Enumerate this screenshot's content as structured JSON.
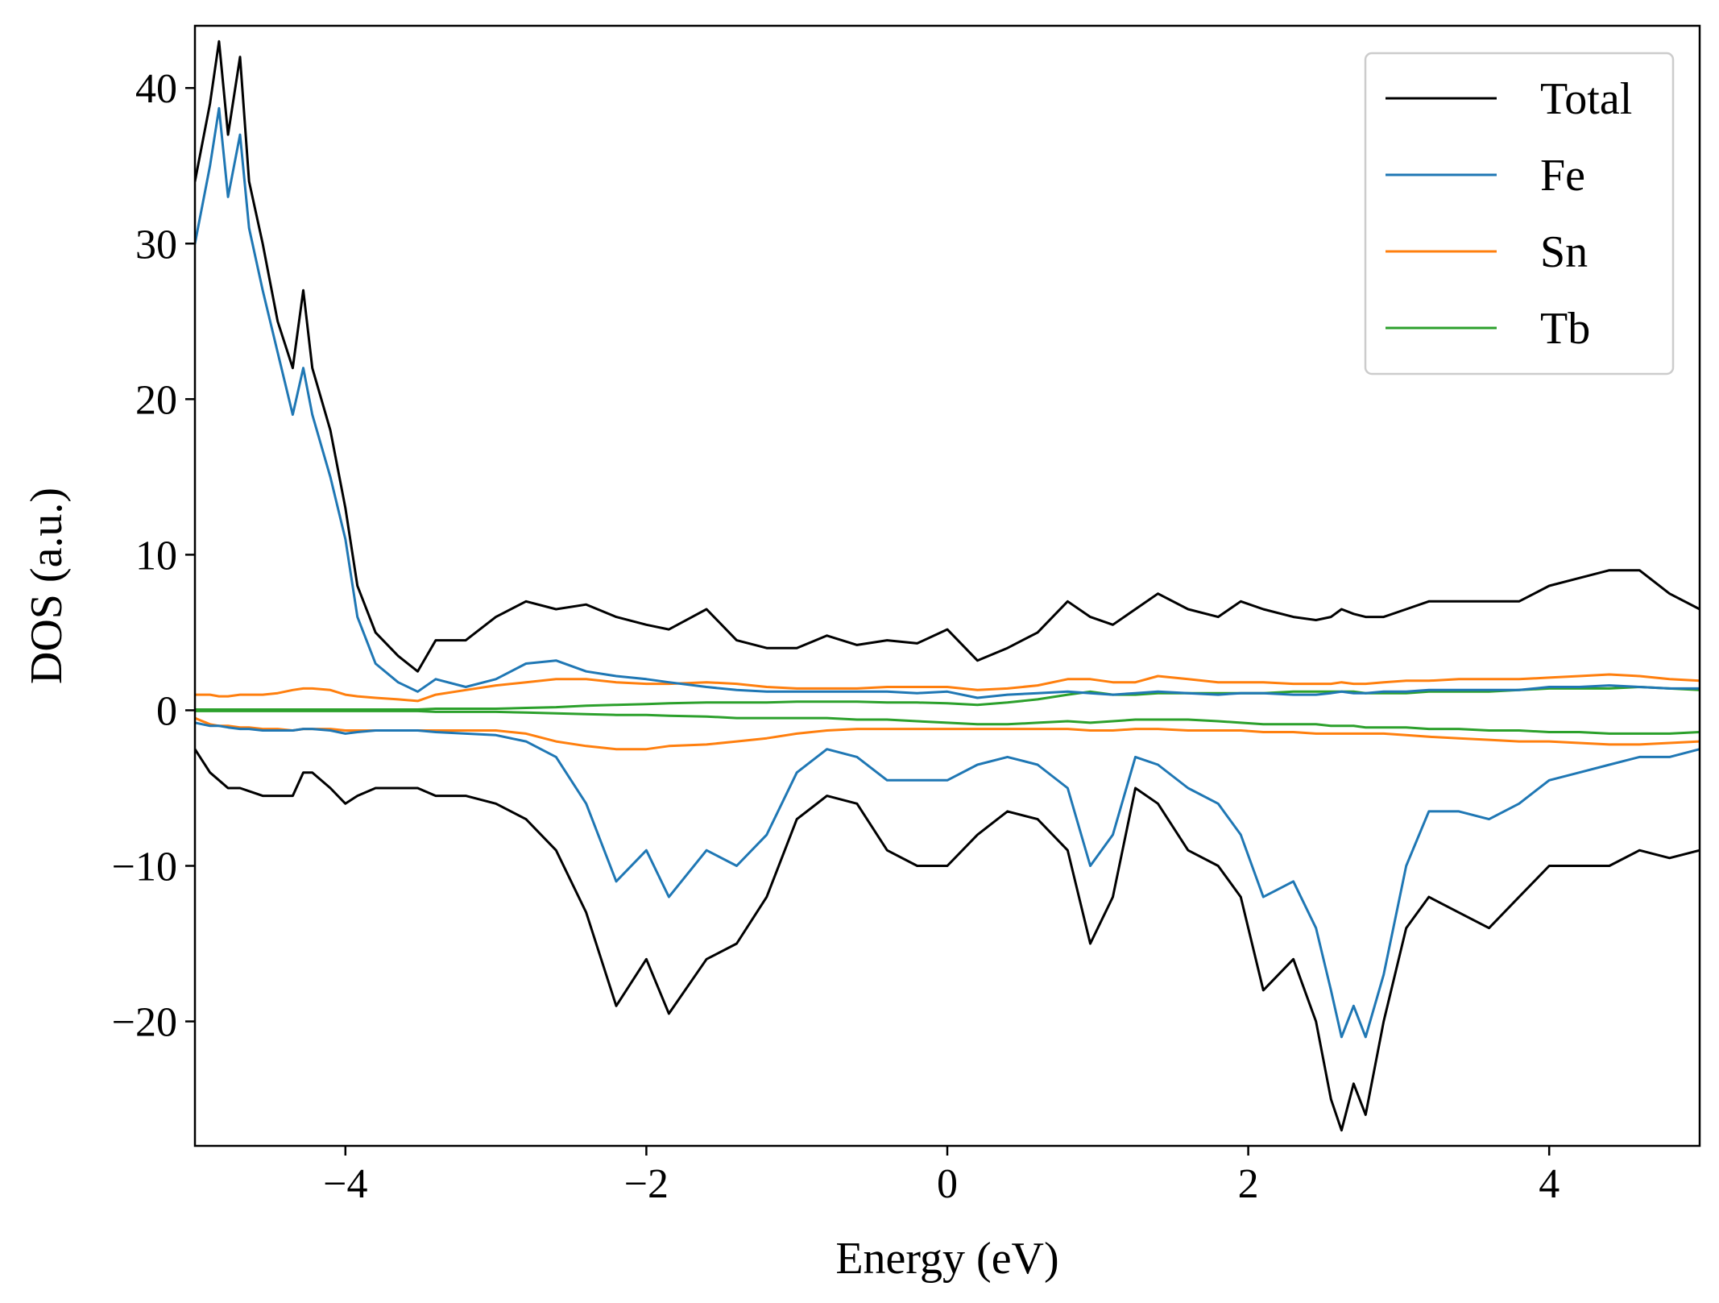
{
  "chart_data": {
    "type": "line",
    "title": "",
    "xlabel": "Energy (eV)",
    "ylabel": "DOS (a.u.)",
    "xlim": [
      -5,
      5
    ],
    "ylim": [
      -28,
      44
    ],
    "x_ticks": [
      -4,
      -2,
      0,
      2,
      4
    ],
    "x_tick_labels": [
      "−4",
      "−2",
      "0",
      "2",
      "4"
    ],
    "y_ticks": [
      -20,
      -10,
      0,
      10,
      20,
      30,
      40
    ],
    "y_tick_labels": [
      "−20",
      "−10",
      "0",
      "10",
      "20",
      "30",
      "40"
    ],
    "grid": false,
    "legend_position": "upper right",
    "x": [
      -5.0,
      -4.9,
      -4.84,
      -4.78,
      -4.7,
      -4.64,
      -4.55,
      -4.45,
      -4.35,
      -4.28,
      -4.22,
      -4.1,
      -4.0,
      -3.92,
      -3.8,
      -3.65,
      -3.52,
      -3.4,
      -3.2,
      -3.0,
      -2.8,
      -2.6,
      -2.4,
      -2.2,
      -2.0,
      -1.85,
      -1.6,
      -1.4,
      -1.2,
      -1.0,
      -0.8,
      -0.6,
      -0.4,
      -0.2,
      0.0,
      0.2,
      0.4,
      0.6,
      0.8,
      0.95,
      1.1,
      1.25,
      1.4,
      1.6,
      1.8,
      1.95,
      2.1,
      2.3,
      2.45,
      2.55,
      2.62,
      2.7,
      2.78,
      2.9,
      3.05,
      3.2,
      3.4,
      3.6,
      3.8,
      4.0,
      4.2,
      4.4,
      4.6,
      4.8,
      5.0
    ],
    "series": [
      {
        "name": "Total",
        "color": "#000000",
        "up": [
          34,
          39,
          43,
          37,
          42,
          34,
          30,
          25,
          22,
          27,
          22,
          18,
          13,
          8,
          5,
          3.5,
          2.5,
          4.5,
          4.5,
          6,
          7,
          6.5,
          6.8,
          6,
          5.5,
          5.2,
          6.5,
          4.5,
          4,
          4,
          4.8,
          4.2,
          4.5,
          4.3,
          5.2,
          3.2,
          4,
          5,
          7,
          6,
          5.5,
          6.5,
          7.5,
          6.5,
          6,
          7,
          6.5,
          6,
          5.8,
          6,
          6.5,
          6.2,
          6,
          6,
          6.5,
          7,
          7,
          7,
          7,
          8,
          8.5,
          9,
          9,
          7.5,
          6.5
        ],
        "down": [
          -2.5,
          -4,
          -4.5,
          -5,
          -5,
          -5.2,
          -5.5,
          -5.5,
          -5.5,
          -4,
          -4,
          -5,
          -6,
          -5.5,
          -5,
          -5,
          -5,
          -5.5,
          -5.5,
          -6,
          -7,
          -9,
          -13,
          -19,
          -16,
          -19.5,
          -16,
          -15,
          -12,
          -7,
          -5.5,
          -6,
          -9,
          -10,
          -10,
          -8,
          -6.5,
          -7,
          -9,
          -15,
          -12,
          -5,
          -6,
          -9,
          -10,
          -12,
          -18,
          -16,
          -20,
          -25,
          -27,
          -24,
          -26,
          -20,
          -14,
          -12,
          -13,
          -14,
          -12,
          -10,
          -10,
          -10,
          -9,
          -9.5,
          -9
        ]
      },
      {
        "name": "Fe",
        "color": "#1f77b4",
        "up": [
          30,
          35,
          38.7,
          33,
          37,
          31,
          27,
          23,
          19,
          22,
          19,
          15,
          11,
          6,
          3,
          1.8,
          1.2,
          2,
          1.5,
          2,
          3,
          3.2,
          2.5,
          2.2,
          2,
          1.8,
          1.5,
          1.3,
          1.2,
          1.2,
          1.2,
          1.2,
          1.2,
          1.1,
          1.2,
          0.8,
          1,
          1.1,
          1.2,
          1.1,
          1,
          1.1,
          1.2,
          1.1,
          1,
          1.1,
          1.1,
          1,
          1,
          1.1,
          1.2,
          1.1,
          1.1,
          1.2,
          1.2,
          1.3,
          1.3,
          1.3,
          1.3,
          1.5,
          1.5,
          1.6,
          1.5,
          1.4,
          1.4
        ],
        "down": [
          -0.8,
          -1,
          -1,
          -1.1,
          -1.2,
          -1.2,
          -1.3,
          -1.3,
          -1.3,
          -1.2,
          -1.2,
          -1.3,
          -1.5,
          -1.4,
          -1.3,
          -1.3,
          -1.3,
          -1.4,
          -1.5,
          -1.6,
          -2,
          -3,
          -6,
          -11,
          -9,
          -12,
          -9,
          -10,
          -8,
          -4,
          -2.5,
          -3,
          -4.5,
          -4.5,
          -4.5,
          -3.5,
          -3,
          -3.5,
          -5,
          -10,
          -8,
          -3,
          -3.5,
          -5,
          -6,
          -8,
          -12,
          -11,
          -14,
          -18,
          -21,
          -19,
          -21,
          -17,
          -10,
          -6.5,
          -6.5,
          -7,
          -6,
          -4.5,
          -4,
          -3.5,
          -3,
          -3,
          -2.5
        ]
      },
      {
        "name": "Sn",
        "color": "#ff7f0e",
        "up": [
          1,
          1,
          0.9,
          0.9,
          1,
          1,
          1,
          1.1,
          1.3,
          1.4,
          1.4,
          1.3,
          1,
          0.9,
          0.8,
          0.7,
          0.6,
          1,
          1.3,
          1.6,
          1.8,
          2,
          2,
          1.8,
          1.7,
          1.7,
          1.8,
          1.7,
          1.5,
          1.4,
          1.4,
          1.4,
          1.5,
          1.5,
          1.5,
          1.3,
          1.4,
          1.6,
          2,
          2,
          1.8,
          1.8,
          2.2,
          2,
          1.8,
          1.8,
          1.8,
          1.7,
          1.7,
          1.7,
          1.8,
          1.7,
          1.7,
          1.8,
          1.9,
          1.9,
          2,
          2,
          2,
          2.1,
          2.2,
          2.3,
          2.2,
          2,
          1.9
        ],
        "down": [
          -0.5,
          -0.9,
          -1,
          -1,
          -1.1,
          -1.1,
          -1.2,
          -1.2,
          -1.3,
          -1.2,
          -1.2,
          -1.2,
          -1.3,
          -1.3,
          -1.3,
          -1.3,
          -1.3,
          -1.3,
          -1.3,
          -1.3,
          -1.5,
          -2,
          -2.3,
          -2.5,
          -2.5,
          -2.3,
          -2.2,
          -2,
          -1.8,
          -1.5,
          -1.3,
          -1.2,
          -1.2,
          -1.2,
          -1.2,
          -1.2,
          -1.2,
          -1.2,
          -1.2,
          -1.3,
          -1.3,
          -1.2,
          -1.2,
          -1.3,
          -1.3,
          -1.3,
          -1.4,
          -1.4,
          -1.5,
          -1.5,
          -1.5,
          -1.5,
          -1.5,
          -1.5,
          -1.6,
          -1.7,
          -1.8,
          -1.9,
          -2,
          -2,
          -2.1,
          -2.2,
          -2.2,
          -2.1,
          -2
        ]
      },
      {
        "name": "Tb",
        "color": "#2ca02c",
        "up": [
          0.05,
          0.05,
          0.05,
          0.05,
          0.05,
          0.05,
          0.05,
          0.05,
          0.05,
          0.05,
          0.05,
          0.05,
          0.05,
          0.05,
          0.05,
          0.05,
          0.05,
          0.1,
          0.1,
          0.1,
          0.15,
          0.2,
          0.3,
          0.35,
          0.4,
          0.45,
          0.5,
          0.5,
          0.5,
          0.55,
          0.55,
          0.55,
          0.5,
          0.5,
          0.45,
          0.35,
          0.5,
          0.7,
          1,
          1.2,
          1,
          1,
          1.1,
          1.1,
          1.1,
          1.1,
          1.1,
          1.2,
          1.2,
          1.2,
          1.2,
          1.2,
          1.1,
          1.1,
          1.1,
          1.2,
          1.2,
          1.2,
          1.3,
          1.4,
          1.4,
          1.4,
          1.5,
          1.4,
          1.3
        ],
        "down": [
          -0.05,
          -0.05,
          -0.05,
          -0.05,
          -0.05,
          -0.05,
          -0.05,
          -0.05,
          -0.05,
          -0.05,
          -0.05,
          -0.05,
          -0.05,
          -0.05,
          -0.05,
          -0.05,
          -0.05,
          -0.1,
          -0.1,
          -0.1,
          -0.15,
          -0.2,
          -0.25,
          -0.3,
          -0.3,
          -0.35,
          -0.4,
          -0.5,
          -0.5,
          -0.5,
          -0.5,
          -0.6,
          -0.6,
          -0.7,
          -0.8,
          -0.9,
          -0.9,
          -0.8,
          -0.7,
          -0.8,
          -0.7,
          -0.6,
          -0.6,
          -0.6,
          -0.7,
          -0.8,
          -0.9,
          -0.9,
          -0.9,
          -1,
          -1,
          -1,
          -1.1,
          -1.1,
          -1.1,
          -1.2,
          -1.2,
          -1.3,
          -1.3,
          -1.4,
          -1.4,
          -1.5,
          -1.5,
          -1.5,
          -1.4
        ]
      }
    ]
  }
}
